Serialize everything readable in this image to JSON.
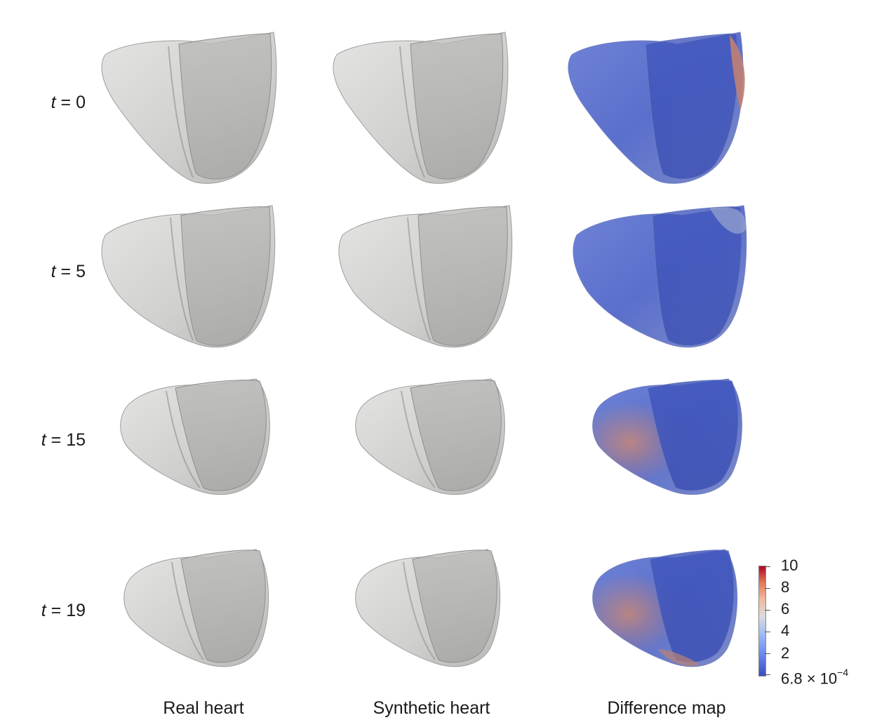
{
  "figure": {
    "time_variable": "t",
    "rows": [
      {
        "label": "t = 0",
        "var": "t",
        "value": "0"
      },
      {
        "label": "t = 5",
        "var": "t",
        "value": "5"
      },
      {
        "label": "t = 15",
        "var": "t",
        "value": "15"
      },
      {
        "label": "t = 19",
        "var": "t",
        "value": "19"
      }
    ],
    "columns": [
      "Real heart",
      "Synthetic heart",
      "Difference map"
    ],
    "colorbar": {
      "ticks": [
        "10",
        "8",
        "6",
        "4",
        "2"
      ],
      "min_label_base": "6.8 × 10",
      "min_label_exp": "−4"
    },
    "colors": {
      "mesh_gray": "#c8c8c6",
      "diff_blue": "#4f63c8",
      "diff_red": "#c97a66"
    }
  }
}
